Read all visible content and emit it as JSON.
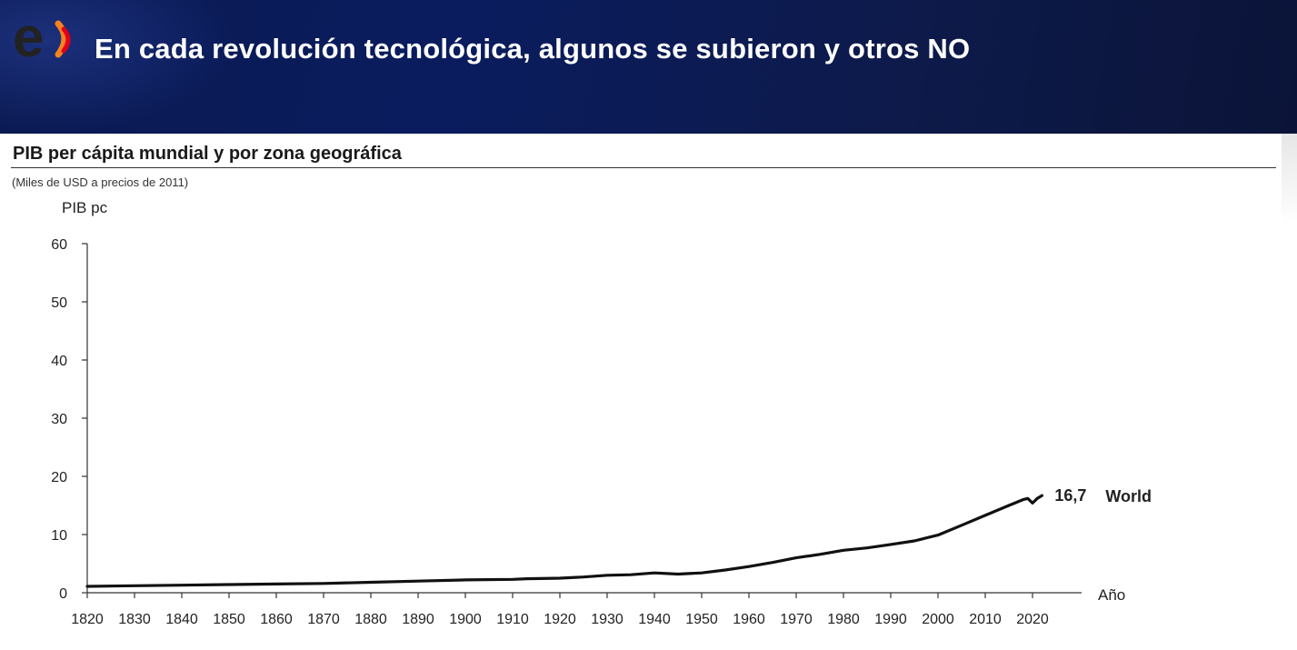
{
  "header": {
    "logo_text": "e",
    "title": "En cada revolución tecnológica, algunos se subieron y otros NO"
  },
  "colors": {
    "header_bg": "#0b1a52",
    "logo_orange": "#f5821f",
    "logo_red": "#e3001b",
    "series_line": "#111111"
  },
  "chart_data": {
    "type": "line",
    "title": "PIB per cápita mundial y por zona geográfica",
    "subtitle": "(Miles de USD a precios de 2011)",
    "ylabel": "PIB pc",
    "xlabel": "Año",
    "ylim": [
      0,
      60
    ],
    "xlim": [
      1820,
      2020
    ],
    "yticks": [
      0,
      10,
      20,
      30,
      40,
      50,
      60
    ],
    "xticks": [
      1820,
      1830,
      1840,
      1850,
      1860,
      1870,
      1880,
      1890,
      1900,
      1910,
      1920,
      1930,
      1940,
      1950,
      1960,
      1970,
      1980,
      1990,
      2000,
      2010,
      2020
    ],
    "grid": false,
    "series": [
      {
        "name": "World",
        "end_label": "16,7",
        "x": [
          1820,
          1830,
          1840,
          1850,
          1860,
          1870,
          1880,
          1890,
          1900,
          1910,
          1913,
          1920,
          1925,
          1930,
          1935,
          1940,
          1945,
          1950,
          1955,
          1960,
          1965,
          1970,
          1975,
          1980,
          1985,
          1990,
          1995,
          2000,
          2005,
          2010,
          2015,
          2018,
          2019,
          2020,
          2021,
          2022
        ],
        "values": [
          1.1,
          1.2,
          1.3,
          1.4,
          1.5,
          1.6,
          1.8,
          2.0,
          2.2,
          2.3,
          2.4,
          2.5,
          2.7,
          3.0,
          3.1,
          3.4,
          3.2,
          3.4,
          3.9,
          4.5,
          5.2,
          6.0,
          6.6,
          7.3,
          7.7,
          8.3,
          8.9,
          9.9,
          11.6,
          13.3,
          15.0,
          16.0,
          16.2,
          15.4,
          16.2,
          16.7
        ]
      }
    ]
  }
}
